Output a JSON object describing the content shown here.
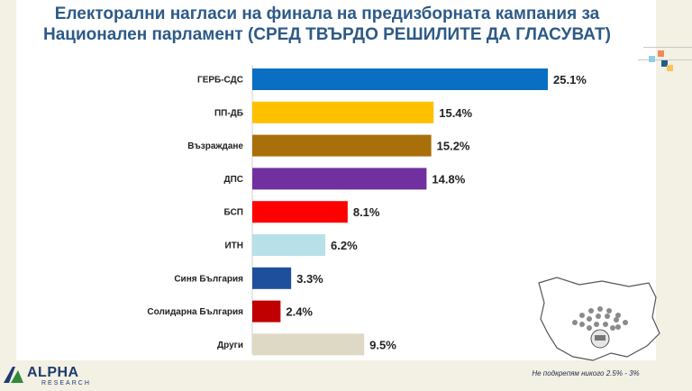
{
  "title": "Електорални нагласи на финала на предизборната кампания за Национален парламент (СРЕД ТВЪРДО РЕШИЛИТЕ ДА ГЛАСУВАТ)",
  "title_line1": "Електорални нагласи на финала на предизборната кампания за",
  "title_line2": "Национален парламент (СРЕД ТВЪРДО РЕШИЛИТЕ ДА ГЛАСУВАТ)",
  "footnote": "Не подкрепям никого 2.5% - 3%",
  "logo": {
    "name": "ALPHA",
    "sub": "RESEARCH",
    "icon": "alpha-logo-icon"
  },
  "colors": {
    "title": "#2d5a87",
    "background": "#f3f0e4"
  },
  "chart_data": {
    "type": "bar",
    "orientation": "horizontal",
    "categories": [
      "ГЕРБ-СДС",
      "ПП-ДБ",
      "Възраждане",
      "ДПС",
      "БСП",
      "ИТН",
      "Синя България",
      "Солидарна България",
      "Други"
    ],
    "values": [
      25.1,
      15.4,
      15.2,
      14.8,
      8.1,
      6.2,
      3.3,
      2.4,
      9.5
    ],
    "labels": [
      "25.1%",
      "15.4%",
      "15.2%",
      "14.8%",
      "8.1%",
      "6.2%",
      "3.3%",
      "2.4%",
      "9.5%"
    ],
    "colors": [
      "#0a6fc2",
      "#ffc000",
      "#a86f0a",
      "#7030a0",
      "#ff0000",
      "#b8e0e8",
      "#1e4f9c",
      "#c00000",
      "#ddd9c4"
    ],
    "title": "",
    "xlabel": "",
    "ylabel": "",
    "xlim": [
      0,
      25.1
    ],
    "grid": false,
    "legend": "none"
  }
}
